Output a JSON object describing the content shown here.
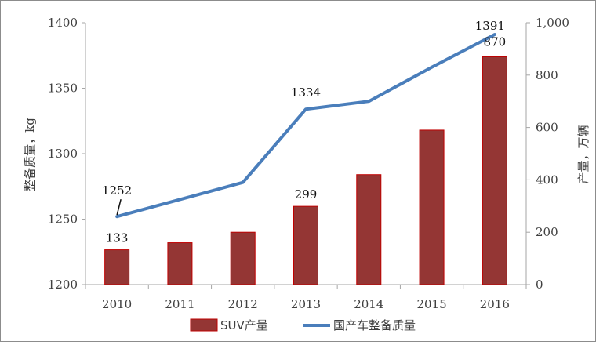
{
  "chart_data": {
    "type": "bar+line",
    "categories": [
      "2010",
      "2011",
      "2012",
      "2013",
      "2014",
      "2015",
      "2016"
    ],
    "series": [
      {
        "name": "SUV产量",
        "type": "bar",
        "axis": "right",
        "color": "#943634",
        "edge_color": "#c00000",
        "values": [
          133,
          160,
          200,
          299,
          420,
          590,
          870
        ]
      },
      {
        "name": "国产车整备质量",
        "type": "line",
        "axis": "left",
        "color": "#4a7ebb",
        "values": [
          1252,
          1265,
          1278,
          1334,
          1340,
          1366,
          1391
        ]
      }
    ],
    "data_labels": [
      {
        "series": "SUV产量",
        "category": "2010",
        "text": "133"
      },
      {
        "series": "SUV产量",
        "category": "2013",
        "text": "299"
      },
      {
        "series": "SUV产量",
        "category": "2016",
        "text": "870"
      },
      {
        "series": "国产车整备质量",
        "category": "2010",
        "text": "1252"
      },
      {
        "series": "国产车整备质量",
        "category": "2013",
        "text": "1334"
      },
      {
        "series": "国产车整备质量",
        "category": "2016",
        "text": "1391"
      }
    ],
    "y_left": {
      "label": "整备质量，kg",
      "ylim": [
        1200,
        1400
      ],
      "ticks": [
        1200,
        1250,
        1300,
        1350,
        1400
      ],
      "tick_labels": [
        "1200",
        "1250",
        "1300",
        "1350",
        "1400"
      ]
    },
    "y_right": {
      "label": "产量，万辆",
      "ylim": [
        0,
        1000
      ],
      "ticks": [
        0,
        200,
        400,
        600,
        800,
        1000
      ],
      "tick_labels": [
        "0",
        "200",
        "400",
        "600",
        "800",
        "1,000"
      ]
    },
    "grid": false,
    "legend": {
      "position": "bottom",
      "entries": [
        "SUV产量",
        "国产车整备质量"
      ]
    }
  }
}
